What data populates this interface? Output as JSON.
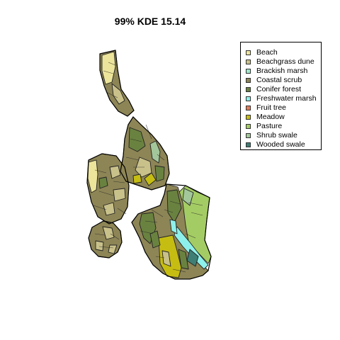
{
  "title": "99% KDE 15.14",
  "legend": {
    "items": [
      {
        "label": "Beach",
        "color": "#ece49a"
      },
      {
        "label": "Beachgrass dune",
        "color": "#c9c18a"
      },
      {
        "label": "Brackish marsh",
        "color": "#9fe8c9"
      },
      {
        "label": "Coastal scrub",
        "color": "#8d8556"
      },
      {
        "label": "Conifer forest",
        "color": "#6a8240"
      },
      {
        "label": "Freshwater marsh",
        "color": "#8ef0ea"
      },
      {
        "label": "Fruit tree",
        "color": "#e07d5a"
      },
      {
        "label": "Meadow",
        "color": "#c6bd12"
      },
      {
        "label": "Pasture",
        "color": "#a4cc64"
      },
      {
        "label": "Shrub swale",
        "color": "#a3c79a"
      },
      {
        "label": "Wooded swale",
        "color": "#3f7e74"
      }
    ]
  }
}
